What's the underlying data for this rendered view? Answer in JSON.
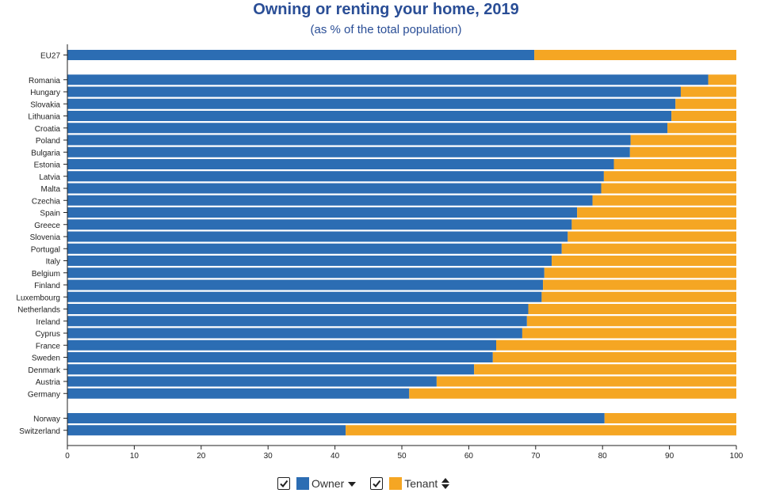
{
  "chart_data": {
    "type": "bar",
    "orientation": "horizontal",
    "stacked": true,
    "title": "Owning or renting your home, 2019",
    "subtitle": "(as % of the total population)",
    "xlim": [
      0,
      100
    ],
    "xticks": [
      "0",
      "10",
      "20",
      "30",
      "40",
      "50",
      "60",
      "70",
      "80",
      "90",
      "100"
    ],
    "grid": false,
    "legend_position": "bottom-center",
    "colors": {
      "owner": "#2c6db3",
      "tenant": "#f5a623"
    },
    "groups": [
      {
        "categories": [
          "EU27"
        ],
        "owner": [
          69.8
        ]
      },
      {
        "categories": [
          "Romania",
          "Hungary",
          "Slovakia",
          "Lithuania",
          "Croatia",
          "Poland",
          "Bulgaria",
          "Estonia",
          "Latvia",
          "Malta",
          "Czechia",
          "Spain",
          "Greece",
          "Slovenia",
          "Portugal",
          "Italy",
          "Belgium",
          "Finland",
          "Luxembourg",
          "Netherlands",
          "Ireland",
          "Cyprus",
          "France",
          "Sweden",
          "Denmark",
          "Austria",
          "Germany"
        ],
        "owner": [
          95.8,
          91.7,
          90.9,
          90.3,
          89.7,
          84.2,
          84.1,
          81.7,
          80.2,
          79.8,
          78.5,
          76.2,
          75.4,
          74.8,
          73.9,
          72.4,
          71.3,
          71.1,
          70.9,
          68.9,
          68.7,
          68.0,
          64.1,
          63.6,
          60.8,
          55.2,
          51.1
        ]
      },
      {
        "categories": [
          "Norway",
          "Switzerland"
        ],
        "owner": [
          80.3,
          41.6
        ]
      }
    ],
    "series_names": [
      "Owner",
      "Tenant"
    ]
  },
  "legend": {
    "items": [
      {
        "label": "Owner",
        "color": "#2c6db3",
        "checked": true,
        "sort_icon": "sort-desc-icon"
      },
      {
        "label": "Tenant",
        "color": "#f5a623",
        "checked": true,
        "sort_icon": "sort-both-icon"
      }
    ]
  }
}
